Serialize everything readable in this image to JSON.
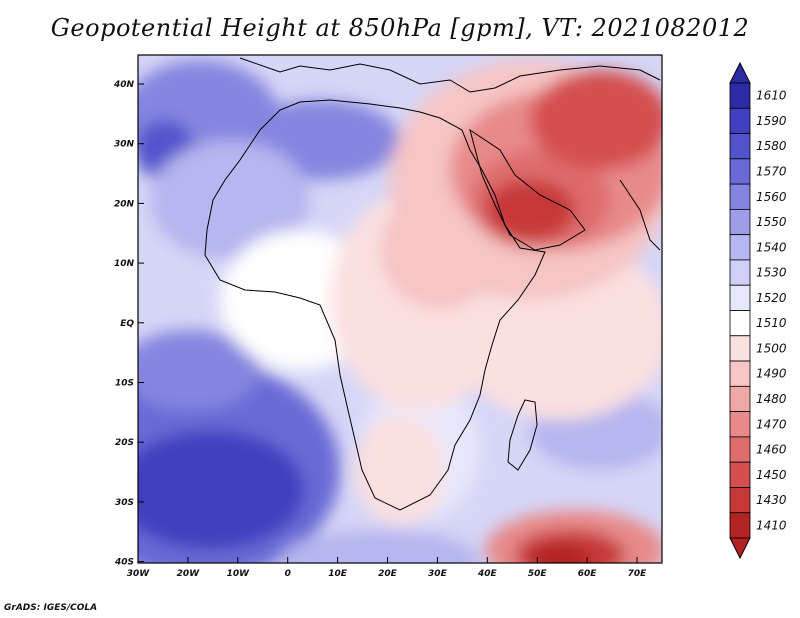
{
  "title": "Geopotential Height at 850hPa [gpm], VT: 2021082012",
  "credit": "GrADS: IGES/COLA",
  "axes": {
    "lat_labels": [
      "40N",
      "30N",
      "20N",
      "10N",
      "EQ",
      "10S",
      "20S",
      "30S",
      "40S"
    ],
    "lon_labels": [
      "30W",
      "20W",
      "10W",
      "0",
      "10E",
      "20E",
      "30E",
      "40E",
      "50E",
      "60E",
      "70E"
    ]
  },
  "colorbar": {
    "labels": [
      "1610",
      "1590",
      "1580",
      "1570",
      "1560",
      "1550",
      "1540",
      "1530",
      "1520",
      "1510",
      "1500",
      "1490",
      "1480",
      "1470",
      "1460",
      "1450",
      "1430",
      "1410"
    ],
    "colors": [
      "#2b2ba5",
      "#3f3fbf",
      "#5252cc",
      "#6a6ad6",
      "#8585e0",
      "#9e9ee8",
      "#b6b6f0",
      "#cfcff7",
      "#e7e7fb",
      "#ffffff",
      "#fbe0e0",
      "#f6c5c5",
      "#efa8a8",
      "#e88a8a",
      "#de6c6c",
      "#d44f4f",
      "#c63838",
      "#b22222"
    ]
  }
}
